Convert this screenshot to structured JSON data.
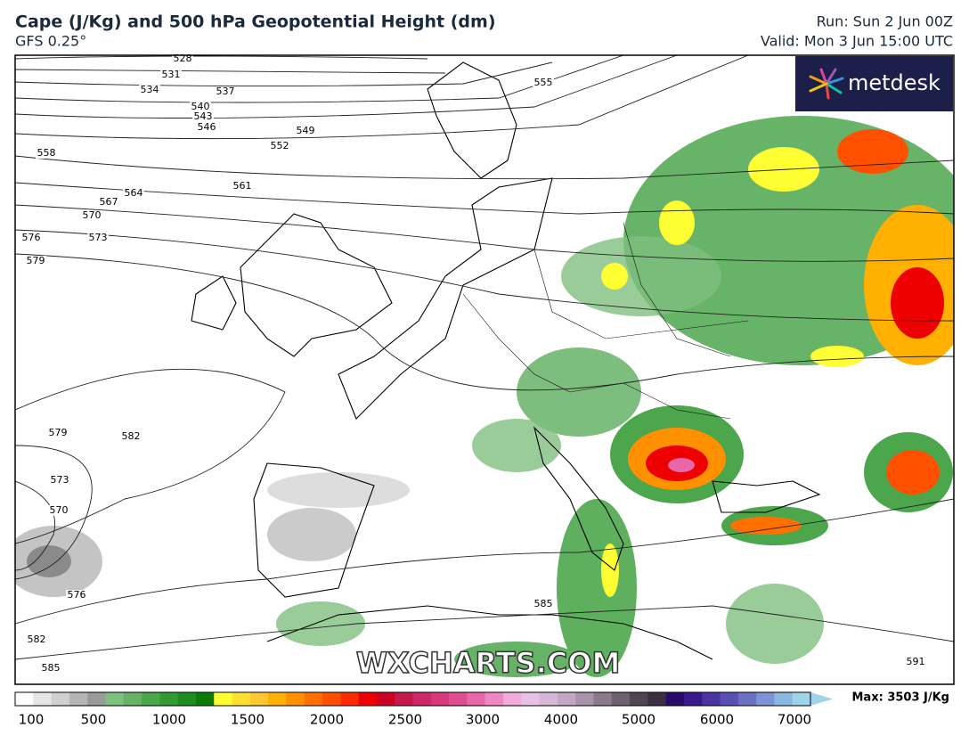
{
  "header": {
    "title": "Cape (J/Kg) and 500 hPa Geopotential Height (dm)",
    "model": "GFS 0.25°",
    "run": "Run: Sun 2 Jun 00Z",
    "valid": "Valid: Mon 3 Jun 15:00 UTC"
  },
  "logo": "metdesk",
  "watermark": "WXCHARTS.COM",
  "contour_labels": [
    "528",
    "531",
    "534",
    "537",
    "540",
    "543",
    "546",
    "549",
    "552",
    "555",
    "558",
    "561",
    "564",
    "567",
    "570",
    "573",
    "576",
    "579",
    "579",
    "582",
    "573",
    "570",
    "576",
    "582",
    "585",
    "585",
    "591"
  ],
  "colorbar": {
    "ticks": [
      "100",
      "500",
      "1000",
      "1500",
      "2000",
      "2500",
      "3000",
      "4000",
      "5000",
      "6000",
      "7000"
    ],
    "max_label": "Max: 3503 J/Kg",
    "colors": [
      "#ffffff",
      "#e6e6e6",
      "#cfcfcf",
      "#b5b5b5",
      "#9a9a9a",
      "#7fbf7f",
      "#66b266",
      "#4ca64c",
      "#339933",
      "#1f8c1f",
      "#0a7a0a",
      "#ffff33",
      "#ffe033",
      "#ffc833",
      "#ffb000",
      "#ff9000",
      "#ff7000",
      "#ff5000",
      "#ff2a00",
      "#ee0000",
      "#cc0022",
      "#c21a4a",
      "#cc2a66",
      "#d63a7a",
      "#e04c90",
      "#e866aa",
      "#ee88c4",
      "#f0aadc",
      "#e6c2e6",
      "#d8b6d8",
      "#c4a6c4",
      "#a894a8",
      "#8a7a8a",
      "#6e6070",
      "#4e4650",
      "#3a3040",
      "#2a0a6a",
      "#3a1a8a",
      "#4a34a0",
      "#5a50b4",
      "#6a70c4",
      "#7a94d4",
      "#8cb8e0",
      "#9ed4ea"
    ]
  }
}
